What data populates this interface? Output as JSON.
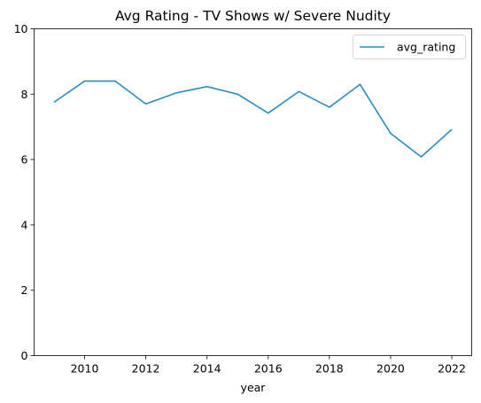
{
  "chart_data": {
    "type": "line",
    "title": "Avg Rating - TV Shows w/ Severe Nudity",
    "xlabel": "year",
    "ylabel": "",
    "x": [
      2009,
      2010,
      2011,
      2012,
      2013,
      2014,
      2015,
      2016,
      2017,
      2018,
      2019,
      2020,
      2021,
      2022
    ],
    "series": [
      {
        "name": "avg_rating",
        "color": "#2b8cbe",
        "values": [
          7.75,
          8.4,
          8.4,
          7.7,
          8.04,
          8.23,
          8.0,
          7.42,
          8.08,
          7.6,
          8.3,
          6.8,
          6.08,
          6.92
        ]
      }
    ],
    "xlim": [
      2008.35,
      2022.65
    ],
    "ylim": [
      0,
      10
    ],
    "xticks": [
      "2010",
      "2012",
      "2014",
      "2016",
      "2018",
      "2020",
      "2022"
    ],
    "yticks": [
      "0",
      "2",
      "4",
      "6",
      "8",
      "10"
    ],
    "grid": false,
    "legend_position": "top-right"
  }
}
